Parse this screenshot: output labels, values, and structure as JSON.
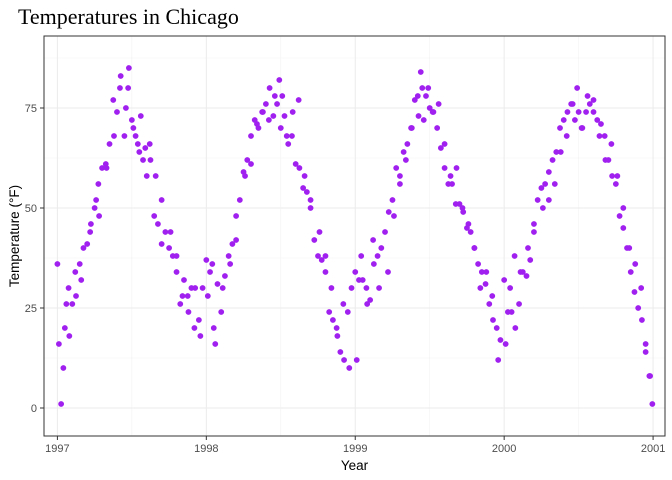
{
  "chart_data": {
    "type": "scatter",
    "title": "Temperatures in Chicago",
    "xlabel": "Year",
    "ylabel": "Temperature (°F)",
    "x_ticks": [
      "1997",
      "1998",
      "1999",
      "2000",
      "2001"
    ],
    "y_ticks": [
      0,
      25,
      50,
      75
    ],
    "xlim": [
      1996.91,
      2001.08
    ],
    "ylim": [
      -7,
      93
    ],
    "grid": true,
    "legend": "none",
    "point_color": "#a020f0",
    "series": [
      {
        "x": [
          1997.0,
          1997.025,
          1997.05,
          1997.075,
          1997.1,
          1997.125,
          1997.15,
          1997.175,
          1997.2,
          1997.225,
          1997.25,
          1997.275,
          1997.3,
          1997.325,
          1997.35,
          1997.375,
          1997.4,
          1997.425,
          1997.45,
          1997.475,
          1997.5,
          1997.525,
          1997.55,
          1997.575,
          1997.6,
          1997.625,
          1997.65,
          1997.675,
          1997.7,
          1997.725,
          1997.75,
          1997.775,
          1997.8,
          1997.825,
          1997.85,
          1997.875,
          1997.9,
          1997.925,
          1997.95,
          1997.975,
          1998.0,
          1998.025,
          1998.05,
          1998.075,
          1998.1,
          1998.125,
          1998.15,
          1998.175,
          1998.2,
          1998.225,
          1998.25,
          1998.275,
          1998.3,
          1998.325,
          1998.35,
          1998.375,
          1998.4,
          1998.425,
          1998.45,
          1998.475,
          1998.5,
          1998.525,
          1998.55,
          1998.575,
          1998.6,
          1998.625,
          1998.65,
          1998.675,
          1998.7,
          1998.725,
          1998.75,
          1998.775,
          1998.8,
          1998.825,
          1998.85,
          1998.875,
          1998.9,
          1998.925,
          1998.95,
          1998.975,
          1999.0,
          1999.025,
          1999.05,
          1999.075,
          1999.1,
          1999.125,
          1999.15,
          1999.175,
          1999.2,
          1999.225,
          1999.25,
          1999.275,
          1999.3,
          1999.325,
          1999.35,
          1999.375,
          1999.4,
          1999.425,
          1999.45,
          1999.475,
          1999.5,
          1999.525,
          1999.55,
          1999.575,
          1999.6,
          1999.625,
          1999.65,
          1999.675,
          1999.7,
          1999.725,
          1999.75,
          1999.775,
          1999.8,
          1999.825,
          1999.85,
          1999.875,
          1999.9,
          1999.925,
          1999.95,
          1999.975,
          2000.0,
          2000.025,
          2000.05,
          2000.075,
          2000.1,
          2000.125,
          2000.15,
          2000.175,
          2000.2,
          2000.225,
          2000.25,
          2000.275,
          2000.3,
          2000.325,
          2000.35,
          2000.375,
          2000.4,
          2000.425,
          2000.45,
          2000.475,
          2000.5,
          2000.525,
          2000.55,
          2000.575,
          2000.6,
          2000.625,
          2000.65,
          2000.675,
          2000.7,
          2000.725,
          2000.75,
          2000.775,
          2000.8,
          2000.825,
          2000.85,
          2000.875,
          2000.9,
          2000.925,
          2000.95,
          2000.975,
          2000.995
        ],
        "y": [
          36,
          1,
          20,
          30,
          26,
          28,
          36,
          40,
          41,
          46,
          50,
          56,
          60,
          61,
          66,
          77,
          74,
          83,
          68,
          80,
          72,
          68,
          64,
          62,
          58,
          62,
          48,
          46,
          41,
          44,
          40,
          38,
          34,
          26,
          32,
          28,
          30,
          30,
          22,
          30,
          37,
          34,
          20,
          31,
          24,
          33,
          38,
          41,
          48,
          52,
          59,
          62,
          68,
          72,
          70,
          74,
          76,
          80,
          73,
          76,
          70,
          73,
          66,
          68,
          61,
          60,
          55,
          54,
          50,
          42,
          38,
          37,
          34,
          24,
          22,
          20,
          14,
          12,
          24,
          30,
          34,
          32,
          32,
          30,
          27,
          36,
          38,
          40,
          44,
          49,
          52,
          60,
          58,
          64,
          66,
          70,
          77,
          73,
          80,
          78,
          75,
          74,
          70,
          65,
          60,
          56,
          56,
          51,
          51,
          49,
          45,
          44,
          40,
          36,
          34,
          31,
          26,
          22,
          20,
          17,
          32,
          24,
          24,
          20,
          26,
          34,
          33,
          37,
          46,
          52,
          55,
          56,
          59,
          62,
          64,
          70,
          72,
          74,
          76,
          72,
          74,
          70,
          74,
          76,
          77,
          72,
          71,
          68,
          62,
          58,
          56,
          48,
          45,
          40,
          34,
          29,
          25,
          22,
          14,
          8,
          1
        ]
      },
      {
        "x": [
          1997.01,
          1997.04,
          1997.06,
          1997.08,
          1997.12,
          1997.16,
          1997.22,
          1997.26,
          1997.28,
          1997.33,
          1997.38,
          1997.42,
          1997.46,
          1997.48,
          1997.51,
          1997.54,
          1997.56,
          1997.59,
          1997.62,
          1997.66,
          1997.7,
          1997.76,
          1997.8,
          1997.84,
          1997.88,
          1997.92,
          1997.96,
          1998.01,
          1998.04,
          1998.06,
          1998.11,
          1998.16,
          1998.2,
          1998.26,
          1998.3,
          1998.34,
          1998.38,
          1998.42,
          1998.46,
          1998.49,
          1998.51,
          1998.54,
          1998.58,
          1998.62,
          1998.66,
          1998.7,
          1998.76,
          1998.8,
          1998.84,
          1998.88,
          1998.92,
          1998.96,
          1999.01,
          1999.04,
          1999.08,
          1999.12,
          1999.16,
          1999.22,
          1999.26,
          1999.3,
          1999.34,
          1999.38,
          1999.42,
          1999.44,
          1999.46,
          1999.49,
          1999.52,
          1999.56,
          1999.6,
          1999.64,
          1999.68,
          1999.72,
          1999.76,
          1999.8,
          1999.84,
          1999.88,
          1999.92,
          1999.96,
          2000.01,
          2000.04,
          2000.07,
          2000.11,
          2000.16,
          2000.2,
          2000.26,
          2000.3,
          2000.34,
          2000.38,
          2000.42,
          2000.46,
          2000.49,
          2000.52,
          2000.56,
          2000.6,
          2000.64,
          2000.68,
          2000.72,
          2000.76,
          2000.8,
          2000.84,
          2000.88,
          2000.92,
          2000.95,
          2000.98
        ],
        "y": [
          16,
          10,
          26,
          18,
          34,
          32,
          44,
          52,
          48,
          60,
          68,
          80,
          75,
          85,
          70,
          66,
          73,
          65,
          66,
          58,
          52,
          44,
          38,
          28,
          24,
          20,
          18,
          28,
          36,
          16,
          30,
          36,
          42,
          58,
          61,
          71,
          74,
          72,
          78,
          82,
          78,
          68,
          74,
          77,
          58,
          52,
          44,
          38,
          30,
          18,
          26,
          10,
          12,
          38,
          26,
          42,
          30,
          34,
          48,
          56,
          62,
          70,
          78,
          84,
          72,
          80,
          74,
          76,
          66,
          58,
          60,
          50,
          46,
          40,
          30,
          34,
          28,
          12,
          16,
          30,
          38,
          34,
          40,
          44,
          50,
          52,
          56,
          64,
          68,
          76,
          80,
          70,
          78,
          74,
          68,
          62,
          66,
          58,
          50,
          40,
          36,
          30,
          16,
          8
        ]
      }
    ]
  }
}
